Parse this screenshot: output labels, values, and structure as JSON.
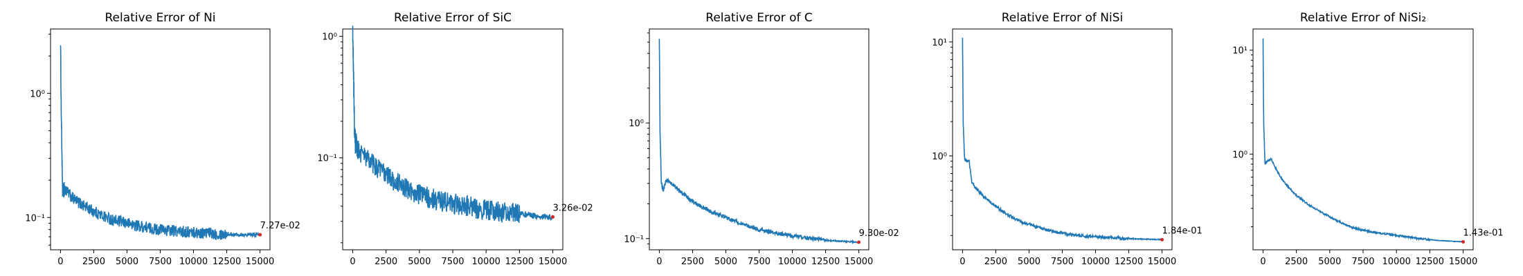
{
  "colors": {
    "series": "#1f77b4",
    "final_marker": "#d62728",
    "axis": "#000000",
    "background": "#ffffff"
  },
  "chart_data": [
    {
      "type": "line",
      "title": "Relative Error of Ni",
      "xlabel": "",
      "ylabel": "",
      "yscale": "log",
      "xlim": [
        -750,
        15750
      ],
      "ylim": [
        0.055,
        3.3
      ],
      "xticks": [
        0,
        2500,
        5000,
        7500,
        10000,
        12500,
        15000
      ],
      "xtick_labels": [
        "0",
        "2500",
        "5000",
        "7500",
        "10000",
        "12500",
        "15000"
      ],
      "yticks": [
        0.1,
        1
      ],
      "ytick_labels": [
        "10⁻¹",
        "10⁰"
      ],
      "grid": false,
      "series": [
        {
          "x": [
            0,
            50,
            150,
            300,
            500,
            1000,
            2000,
            3000,
            4000,
            5000,
            6000,
            7000,
            8000,
            9000,
            10000,
            11000,
            12000,
            13000,
            14000,
            15000
          ],
          "values": [
            2.7,
            0.8,
            0.16,
            0.17,
            0.16,
            0.14,
            0.12,
            0.105,
            0.095,
            0.09,
            0.085,
            0.081,
            0.079,
            0.077,
            0.076,
            0.075,
            0.074,
            0.073,
            0.0728,
            0.0727
          ]
        }
      ],
      "noise": 0.11,
      "final_point": {
        "x": 15000,
        "y": 0.0727
      },
      "annotation": "7.27e-02"
    },
    {
      "type": "line",
      "title": "Relative Error of SiC",
      "xlabel": "",
      "ylabel": "",
      "yscale": "log",
      "xlim": [
        -750,
        15750
      ],
      "ylim": [
        0.0175,
        1.15
      ],
      "xticks": [
        0,
        2500,
        5000,
        7500,
        10000,
        12500,
        15000
      ],
      "xtick_labels": [
        "0",
        "2500",
        "5000",
        "7500",
        "10000",
        "12500",
        "15000"
      ],
      "yticks": [
        0.1,
        1
      ],
      "ytick_labels": [
        "10⁻¹",
        "10⁰"
      ],
      "grid": false,
      "series": [
        {
          "x": [
            0,
            50,
            150,
            300,
            1000,
            2000,
            3000,
            4000,
            5000,
            6000,
            7000,
            8000,
            9000,
            10000,
            11000,
            12000,
            13000,
            14000,
            15000
          ],
          "values": [
            1.0,
            0.6,
            0.14,
            0.12,
            0.1,
            0.08,
            0.066,
            0.056,
            0.05,
            0.046,
            0.043,
            0.041,
            0.039,
            0.037,
            0.036,
            0.035,
            0.034,
            0.033,
            0.0326
          ]
        }
      ],
      "noise": 0.2,
      "final_point": {
        "x": 15000,
        "y": 0.0326
      },
      "annotation": "3.26e-02"
    },
    {
      "type": "line",
      "title": "Relative Error of C",
      "xlabel": "",
      "ylabel": "",
      "yscale": "log",
      "xlim": [
        -750,
        15750
      ],
      "ylim": [
        0.08,
        6.5
      ],
      "xticks": [
        0,
        2500,
        5000,
        7500,
        10000,
        12500,
        15000
      ],
      "xtick_labels": [
        "0",
        "2500",
        "5000",
        "7500",
        "10000",
        "12500",
        "15000"
      ],
      "yticks": [
        0.1,
        1
      ],
      "ytick_labels": [
        "10⁻¹",
        "10⁰"
      ],
      "grid": false,
      "series": [
        {
          "x": [
            0,
            50,
            150,
            300,
            500,
            800,
            1500,
            2500,
            3500,
            4500,
            5500,
            6500,
            7500,
            8500,
            9500,
            10500,
            11500,
            12500,
            13500,
            15000
          ],
          "values": [
            5.5,
            0.9,
            0.3,
            0.26,
            0.32,
            0.31,
            0.26,
            0.21,
            0.18,
            0.16,
            0.145,
            0.13,
            0.12,
            0.113,
            0.108,
            0.103,
            0.1,
            0.097,
            0.095,
            0.093
          ]
        }
      ],
      "noise": 0.04,
      "final_point": {
        "x": 15000,
        "y": 0.093
      },
      "annotation": "9.30e-02"
    },
    {
      "type": "line",
      "title": "Relative Error of NiSi",
      "xlabel": "",
      "ylabel": "",
      "yscale": "log",
      "xlim": [
        -750,
        15750
      ],
      "ylim": [
        0.15,
        13
      ],
      "xticks": [
        0,
        2500,
        5000,
        7500,
        10000,
        12500,
        15000
      ],
      "xtick_labels": [
        "0",
        "2500",
        "5000",
        "7500",
        "10000",
        "12500",
        "15000"
      ],
      "yticks": [
        1,
        10
      ],
      "ytick_labels": [
        "10⁰",
        "10¹"
      ],
      "grid": false,
      "series": [
        {
          "x": [
            0,
            50,
            150,
            300,
            500,
            700,
            1000,
            1500,
            2500,
            3500,
            4500,
            5500,
            6500,
            7500,
            8500,
            10000,
            11500,
            13000,
            15000
          ],
          "values": [
            10.5,
            2.0,
            0.95,
            0.9,
            0.9,
            0.58,
            0.52,
            0.45,
            0.36,
            0.3,
            0.26,
            0.24,
            0.22,
            0.21,
            0.2,
            0.195,
            0.19,
            0.187,
            0.184
          ]
        }
      ],
      "noise": 0.03,
      "final_point": {
        "x": 15000,
        "y": 0.184
      },
      "annotation": "1.84e-01"
    },
    {
      "type": "line",
      "title": "Relative Error of NiSi₂",
      "xlabel": "",
      "ylabel": "",
      "yscale": "log",
      "xlim": [
        -750,
        15750
      ],
      "ylim": [
        0.12,
        16
      ],
      "xticks": [
        0,
        2500,
        5000,
        7500,
        10000,
        12500,
        15000
      ],
      "xtick_labels": [
        "0",
        "2500",
        "5000",
        "7500",
        "10000",
        "12500",
        "15000"
      ],
      "yticks": [
        1,
        10
      ],
      "ytick_labels": [
        "10⁰",
        "10¹"
      ],
      "grid": false,
      "series": [
        {
          "x": [
            0,
            50,
            150,
            300,
            600,
            900,
            1500,
            2500,
            3500,
            4500,
            5500,
            6500,
            7500,
            8500,
            10000,
            11500,
            13000,
            15000
          ],
          "values": [
            13.0,
            2.0,
            0.8,
            0.85,
            0.9,
            0.75,
            0.55,
            0.4,
            0.32,
            0.27,
            0.23,
            0.2,
            0.185,
            0.175,
            0.165,
            0.155,
            0.148,
            0.143
          ]
        }
      ],
      "noise": 0.02,
      "final_point": {
        "x": 15000,
        "y": 0.143
      },
      "annotation": "1.43e-01"
    }
  ]
}
